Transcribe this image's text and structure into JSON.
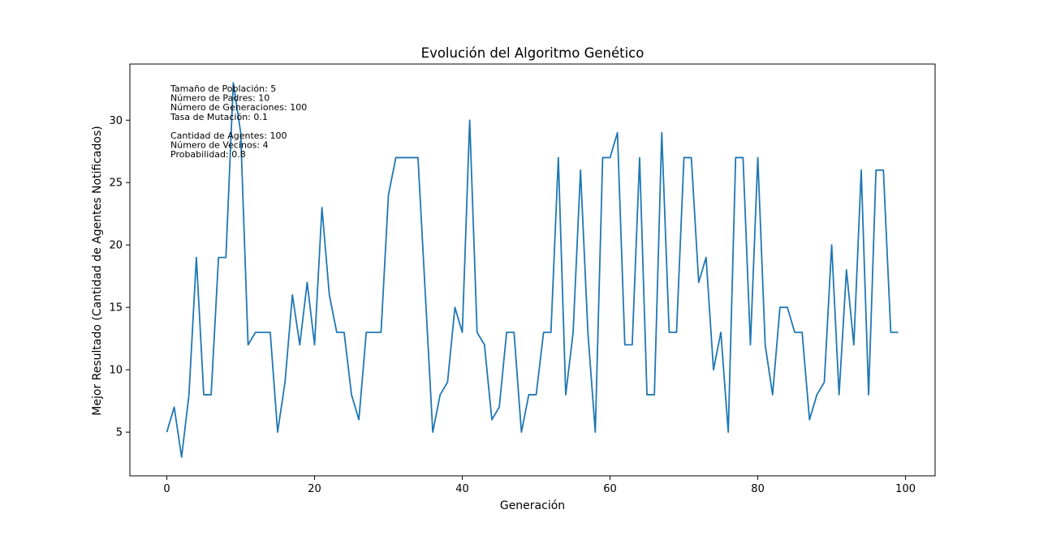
{
  "chart_data": {
    "type": "line",
    "title": "Evolución del Algoritmo Genético",
    "xlabel": "Generación",
    "ylabel": "Mejor Resultado (Cantidad de Agentes Notificados)",
    "xlim": [
      -5,
      104
    ],
    "ylim": [
      1.5,
      34.5
    ],
    "xticks": [
      0,
      20,
      40,
      60,
      80,
      100
    ],
    "yticks": [
      5,
      10,
      15,
      20,
      25,
      30
    ],
    "grid": false,
    "line_color": "#1f77b4",
    "series": [
      {
        "x": [
          0,
          1,
          2,
          3,
          4,
          5,
          6,
          7,
          8,
          9,
          10,
          11,
          12,
          13,
          14,
          15,
          16,
          17,
          18,
          19,
          20,
          21,
          22,
          23,
          24,
          25,
          26,
          27,
          28,
          29,
          30,
          31,
          32,
          33,
          34,
          35,
          36,
          37,
          38,
          39,
          40,
          41,
          42,
          43,
          44,
          45,
          46,
          47,
          48,
          49,
          50,
          51,
          52,
          53,
          54,
          55,
          56,
          57,
          58,
          59,
          60,
          61,
          62,
          63,
          64,
          65,
          66,
          67,
          68,
          69,
          70,
          71,
          72,
          73,
          74,
          75,
          76,
          77,
          78,
          79,
          80,
          81,
          82,
          83,
          84,
          85,
          86,
          87,
          88,
          89,
          90,
          91,
          92,
          93,
          94,
          95,
          96,
          97,
          98,
          99
        ],
        "values": [
          5,
          7,
          3,
          8,
          19,
          8,
          8,
          19,
          19,
          33,
          29,
          12,
          13,
          13,
          13,
          5,
          9,
          16,
          12,
          17,
          12,
          23,
          16,
          13,
          13,
          8,
          6,
          13,
          13,
          13,
          24,
          27,
          27,
          27,
          27,
          16,
          5,
          8,
          9,
          15,
          13,
          30,
          13,
          12,
          6,
          7,
          13,
          13,
          5,
          8,
          8,
          13,
          13,
          27,
          8,
          13,
          26,
          13,
          5,
          27,
          27,
          29,
          12,
          12,
          27,
          8,
          8,
          29,
          13,
          13,
          27,
          27,
          17,
          19,
          10,
          13,
          5,
          27,
          27,
          12,
          27,
          12,
          8,
          15,
          15,
          13,
          13,
          6,
          8,
          9,
          20,
          8,
          18,
          12,
          26,
          8,
          26,
          26,
          13,
          13
        ]
      }
    ],
    "annotations": [
      "Tamaño de Población: 5",
      "Número de Padres: 10",
      "Número de Generaciones: 100",
      "Tasa de Mutación: 0.1",
      "",
      "Cantidad de Agentes: 100",
      "Número de Vecinos: 4",
      "Probabilidad: 0.8"
    ]
  }
}
